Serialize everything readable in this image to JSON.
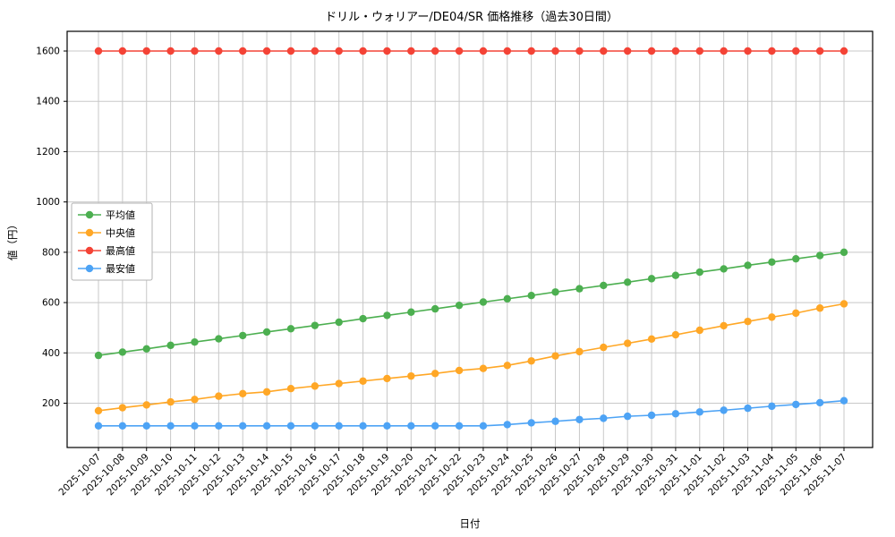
{
  "chart_data": {
    "type": "line",
    "title": "ドリル・ウォリアー/DE04/SR 価格推移（過去30日間）",
    "xlabel": "日付",
    "ylabel": "値（円）",
    "categories": [
      "2025-10-07",
      "2025-10-08",
      "2025-10-09",
      "2025-10-10",
      "2025-10-11",
      "2025-10-12",
      "2025-10-13",
      "2025-10-14",
      "2025-10-15",
      "2025-10-16",
      "2025-10-17",
      "2025-10-18",
      "2025-10-19",
      "2025-10-20",
      "2025-10-21",
      "2025-10-22",
      "2025-10-23",
      "2025-10-24",
      "2025-10-25",
      "2025-10-26",
      "2025-10-27",
      "2025-10-28",
      "2025-10-29",
      "2025-10-30",
      "2025-10-31",
      "2025-11-01",
      "2025-11-02",
      "2025-11-03",
      "2025-11-04",
      "2025-11-05",
      "2025-11-06",
      "2025-11-07"
    ],
    "y_ticks": [
      200,
      400,
      600,
      800,
      1000,
      1200,
      1400,
      1600
    ],
    "ylim": [
      25,
      1680
    ],
    "grid": true,
    "grid_color": "#c8c8c8",
    "frame_color": "#000000",
    "legend_position": "center-left",
    "series": [
      {
        "name": "平均値",
        "color": "#4caf50",
        "values": [
          390,
          403,
          416,
          430,
          443,
          456,
          469,
          483,
          496,
          509,
          522,
          536,
          549,
          562,
          575,
          589,
          602,
          615,
          628,
          642,
          655,
          668,
          681,
          695,
          708,
          721,
          734,
          748,
          761,
          774,
          787,
          800
        ]
      },
      {
        "name": "中央値",
        "color": "#ffa726",
        "values": [
          170,
          182,
          193,
          205,
          215,
          228,
          238,
          245,
          258,
          268,
          278,
          288,
          298,
          308,
          318,
          330,
          338,
          350,
          368,
          388,
          405,
          422,
          438,
          455,
          472,
          490,
          508,
          525,
          542,
          558,
          578,
          595
        ]
      },
      {
        "name": "最高値",
        "color": "#f44336",
        "values": [
          1600,
          1600,
          1600,
          1600,
          1600,
          1600,
          1600,
          1600,
          1600,
          1600,
          1600,
          1600,
          1600,
          1600,
          1600,
          1600,
          1600,
          1600,
          1600,
          1600,
          1600,
          1600,
          1600,
          1600,
          1600,
          1600,
          1600,
          1600,
          1600,
          1600,
          1600,
          1600
        ]
      },
      {
        "name": "最安値",
        "color": "#4da3f5",
        "values": [
          110,
          110,
          110,
          110,
          110,
          110,
          110,
          110,
          110,
          110,
          110,
          110,
          110,
          110,
          110,
          110,
          110,
          115,
          122,
          128,
          135,
          140,
          148,
          152,
          158,
          165,
          172,
          180,
          188,
          195,
          202,
          210
        ]
      }
    ]
  }
}
